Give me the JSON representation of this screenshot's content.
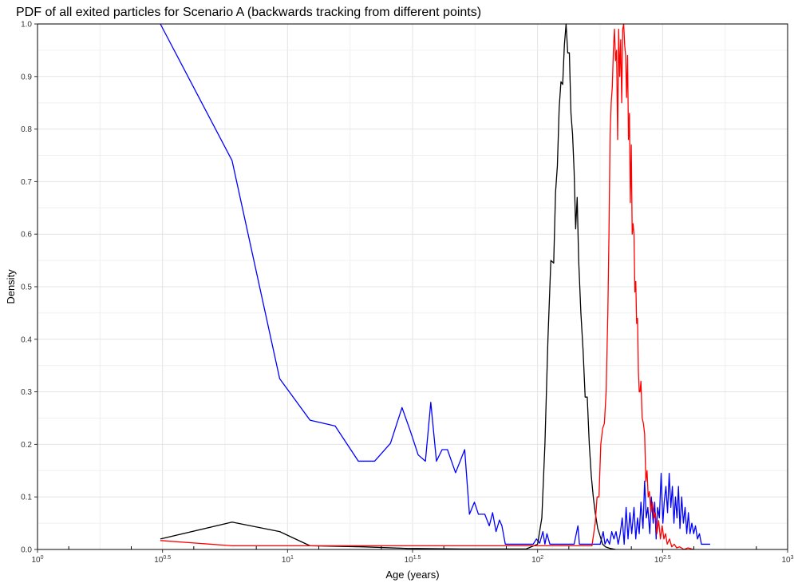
{
  "chart_data": {
    "type": "line",
    "title": "PDF of all exited particles for Scenario A (backwards tracking from different points)",
    "xlabel": "Age (years)",
    "ylabel": "Density",
    "x_scale": "log10",
    "xlim": [
      1,
      1000
    ],
    "ylim": [
      0,
      1
    ],
    "x_ticks": [
      {
        "value": 1,
        "base": "10",
        "exp": "0"
      },
      {
        "value": 3.1623,
        "base": "10",
        "exp": "0.5"
      },
      {
        "value": 10,
        "base": "10",
        "exp": "1"
      },
      {
        "value": 31.623,
        "base": "10",
        "exp": "1.5"
      },
      {
        "value": 100,
        "base": "10",
        "exp": "2"
      },
      {
        "value": 316.23,
        "base": "10",
        "exp": "2.5"
      },
      {
        "value": 1000,
        "base": "10",
        "exp": "3"
      }
    ],
    "y_ticks": [
      "0.0",
      "0.1",
      "0.2",
      "0.3",
      "0.4",
      "0.5",
      "0.6",
      "0.7",
      "0.8",
      "0.9",
      "1.0"
    ],
    "grid": true,
    "legend": "none",
    "series": [
      {
        "color": "#0000ff",
        "points": [
          [
            3.1,
            1.0
          ],
          [
            6.0,
            0.74
          ],
          [
            9.3,
            0.325
          ],
          [
            12.3,
            0.246
          ],
          [
            15.5,
            0.235
          ],
          [
            19.2,
            0.168
          ],
          [
            22.3,
            0.168
          ],
          [
            25.8,
            0.202
          ],
          [
            28.7,
            0.27
          ],
          [
            31.0,
            0.225
          ],
          [
            33.3,
            0.18
          ],
          [
            35.6,
            0.168
          ],
          [
            37.4,
            0.28
          ],
          [
            39.4,
            0.168
          ],
          [
            41.5,
            0.19
          ],
          [
            43.6,
            0.19
          ],
          [
            47.0,
            0.146
          ],
          [
            51.1,
            0.19
          ],
          [
            53.4,
            0.067
          ],
          [
            55.9,
            0.09
          ],
          [
            58.0,
            0.067
          ],
          [
            61.5,
            0.067
          ],
          [
            64.1,
            0.045
          ],
          [
            66.1,
            0.07
          ],
          [
            68.2,
            0.034
          ],
          [
            70.4,
            0.056
          ],
          [
            72.0,
            0.045
          ],
          [
            74.3,
            0.01
          ],
          [
            84.0,
            0.01
          ],
          [
            96.0,
            0.01
          ],
          [
            99.0,
            0.02
          ],
          [
            102.0,
            0.012
          ],
          [
            105.0,
            0.034
          ],
          [
            107.0,
            0.01
          ],
          [
            109.0,
            0.03
          ],
          [
            112.0,
            0.01
          ],
          [
            118.0,
            0.01
          ],
          [
            125.0,
            0.01
          ],
          [
            133.0,
            0.01
          ],
          [
            140.0,
            0.01
          ],
          [
            145.0,
            0.045
          ],
          [
            147.0,
            0.01
          ],
          [
            160.0,
            0.01
          ],
          [
            178.0,
            0.01
          ],
          [
            183.0,
            0.034
          ],
          [
            186.0,
            0.01
          ],
          [
            190.0,
            0.02
          ],
          [
            194.0,
            0.01
          ],
          [
            198.0,
            0.034
          ],
          [
            202.0,
            0.02
          ],
          [
            206.0,
            0.034
          ],
          [
            210.0,
            0.01
          ],
          [
            214.0,
            0.03
          ],
          [
            218.0,
            0.06
          ],
          [
            222.0,
            0.01
          ],
          [
            226.0,
            0.08
          ],
          [
            230.0,
            0.02
          ],
          [
            234.0,
            0.07
          ],
          [
            238.0,
            0.03
          ],
          [
            243.0,
            0.08
          ],
          [
            247.0,
            0.02
          ],
          [
            251.0,
            0.06
          ],
          [
            255.0,
            0.03
          ],
          [
            259.0,
            0.09
          ],
          [
            264.0,
            0.04
          ],
          [
            268.0,
            0.13
          ],
          [
            272.0,
            0.06
          ],
          [
            276.0,
            0.08
          ],
          [
            281.0,
            0.03
          ],
          [
            285.0,
            0.1
          ],
          [
            290.0,
            0.05
          ],
          [
            294.0,
            0.09
          ],
          [
            298.0,
            0.02
          ],
          [
            302.0,
            0.08
          ],
          [
            307.0,
            0.06
          ],
          [
            312.0,
            0.145
          ],
          [
            317.0,
            0.05
          ],
          [
            321.0,
            0.09
          ],
          [
            326.0,
            0.12
          ],
          [
            331.0,
            0.07
          ],
          [
            336.0,
            0.145
          ],
          [
            341.0,
            0.08
          ],
          [
            346.0,
            0.12
          ],
          [
            351.0,
            0.05
          ],
          [
            356.0,
            0.1
          ],
          [
            361.0,
            0.06
          ],
          [
            366.0,
            0.12
          ],
          [
            371.0,
            0.04
          ],
          [
            377.0,
            0.1
          ],
          [
            383.0,
            0.05
          ],
          [
            389.0,
            0.08
          ],
          [
            395.0,
            0.03
          ],
          [
            401.0,
            0.07
          ],
          [
            407.0,
            0.03
          ],
          [
            414.0,
            0.05
          ],
          [
            421.0,
            0.03
          ],
          [
            428.0,
            0.045
          ],
          [
            436.0,
            0.02
          ],
          [
            444.0,
            0.03
          ],
          [
            452.0,
            0.01
          ],
          [
            470.0,
            0.01
          ],
          [
            490.0,
            0.01
          ]
        ]
      },
      {
        "color": "#000000",
        "points": [
          [
            3.1,
            0.02
          ],
          [
            6.0,
            0.052
          ],
          [
            9.3,
            0.034
          ],
          [
            12.3,
            0.007
          ],
          [
            20.0,
            0.005
          ],
          [
            30.0,
            0.002
          ],
          [
            50.0,
            0.001
          ],
          [
            90.0,
            0.001
          ],
          [
            100.0,
            0.01
          ],
          [
            104.0,
            0.06
          ],
          [
            107.0,
            0.2
          ],
          [
            110.0,
            0.4
          ],
          [
            113.0,
            0.55
          ],
          [
            116.0,
            0.545
          ],
          [
            118.0,
            0.68
          ],
          [
            120.0,
            0.73
          ],
          [
            122.0,
            0.84
          ],
          [
            124.0,
            0.89
          ],
          [
            126.0,
            0.885
          ],
          [
            128.0,
            0.96
          ],
          [
            130.0,
            1.0
          ],
          [
            132.0,
            0.945
          ],
          [
            134.0,
            0.945
          ],
          [
            136.0,
            0.83
          ],
          [
            138.0,
            0.79
          ],
          [
            140.0,
            0.72
          ],
          [
            142.0,
            0.61
          ],
          [
            144.0,
            0.67
          ],
          [
            146.0,
            0.55
          ],
          [
            149.0,
            0.45
          ],
          [
            152.0,
            0.38
          ],
          [
            155.0,
            0.29
          ],
          [
            158.0,
            0.29
          ],
          [
            161.0,
            0.2
          ],
          [
            164.0,
            0.14
          ],
          [
            167.0,
            0.1
          ],
          [
            170.0,
            0.07
          ],
          [
            174.0,
            0.04
          ],
          [
            178.0,
            0.025
          ],
          [
            182.0,
            0.01
          ],
          [
            187.0,
            0.005
          ],
          [
            195.0,
            0.002
          ],
          [
            205.0,
            0.0
          ]
        ]
      },
      {
        "color": "#ff0000",
        "points": [
          [
            3.1,
            0.017
          ],
          [
            6.0,
            0.007
          ],
          [
            20.0,
            0.007
          ],
          [
            60.0,
            0.007
          ],
          [
            100.0,
            0.007
          ],
          [
            150.0,
            0.007
          ],
          [
            165.0,
            0.007
          ],
          [
            170.0,
            0.05
          ],
          [
            173.0,
            0.1
          ],
          [
            176.0,
            0.1
          ],
          [
            179.0,
            0.2
          ],
          [
            182.0,
            0.23
          ],
          [
            185.0,
            0.24
          ],
          [
            188.0,
            0.3
          ],
          [
            191.0,
            0.45
          ],
          [
            193.0,
            0.6
          ],
          [
            195.0,
            0.79
          ],
          [
            197.0,
            0.85
          ],
          [
            199.0,
            0.88
          ],
          [
            201.0,
            0.95
          ],
          [
            203.0,
            0.99
          ],
          [
            205.0,
            0.93
          ],
          [
            207.0,
            0.95
          ],
          [
            209.0,
            0.78
          ],
          [
            211.0,
            0.99
          ],
          [
            213.0,
            0.9
          ],
          [
            215.0,
            0.97
          ],
          [
            217.0,
            0.85
          ],
          [
            219.0,
            0.99
          ],
          [
            221.0,
            1.0
          ],
          [
            223.0,
            0.96
          ],
          [
            225.0,
            0.94
          ],
          [
            227.0,
            0.86
          ],
          [
            229.0,
            0.94
          ],
          [
            231.0,
            0.78
          ],
          [
            233.0,
            0.83
          ],
          [
            235.0,
            0.66
          ],
          [
            237.0,
            0.77
          ],
          [
            239.0,
            0.6
          ],
          [
            241.0,
            0.62
          ],
          [
            243.0,
            0.6
          ],
          [
            245.0,
            0.49
          ],
          [
            247.0,
            0.51
          ],
          [
            249.0,
            0.43
          ],
          [
            251.0,
            0.44
          ],
          [
            253.0,
            0.34
          ],
          [
            255.0,
            0.3
          ],
          [
            257.0,
            0.3
          ],
          [
            259.0,
            0.32
          ],
          [
            262.0,
            0.25
          ],
          [
            265.0,
            0.24
          ],
          [
            268.0,
            0.22
          ],
          [
            271.0,
            0.13
          ],
          [
            274.0,
            0.15
          ],
          [
            277.0,
            0.1
          ],
          [
            280.0,
            0.11
          ],
          [
            284.0,
            0.07
          ],
          [
            288.0,
            0.09
          ],
          [
            292.0,
            0.06
          ],
          [
            296.0,
            0.07
          ],
          [
            300.0,
            0.03
          ],
          [
            305.0,
            0.055
          ],
          [
            310.0,
            0.02
          ],
          [
            315.0,
            0.045
          ],
          [
            320.0,
            0.02
          ],
          [
            325.0,
            0.03
          ],
          [
            330.0,
            0.01
          ],
          [
            337.0,
            0.02
          ],
          [
            344.0,
            0.005
          ],
          [
            352.0,
            0.01
          ],
          [
            360.0,
            0.003
          ],
          [
            370.0,
            0.005
          ],
          [
            385.0,
            0.0
          ],
          [
            400.0,
            0.003
          ],
          [
            420.0,
            0.0
          ]
        ]
      }
    ]
  }
}
